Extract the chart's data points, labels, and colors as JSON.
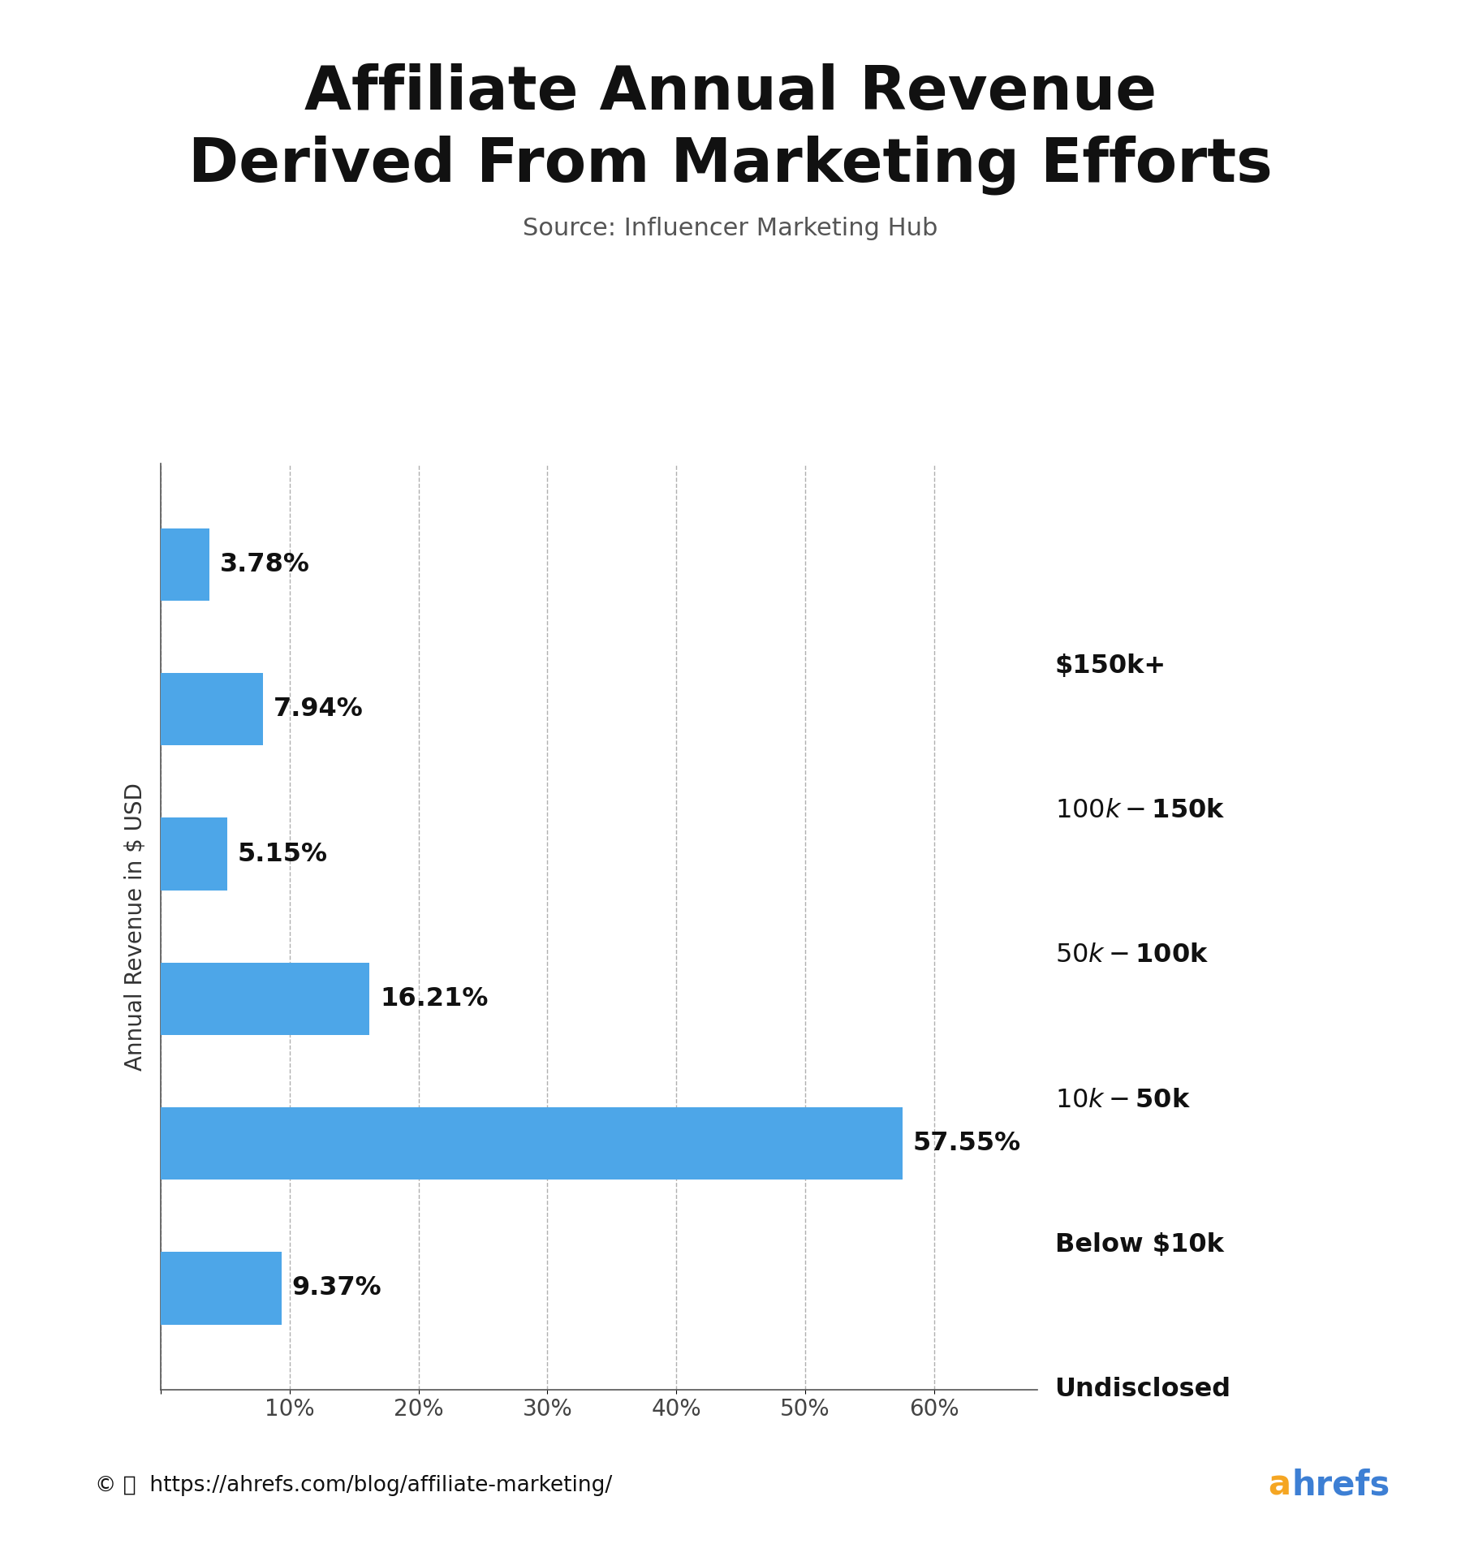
{
  "title_line1": "Affiliate Annual Revenue",
  "title_line2": "Derived From Marketing Efforts",
  "subtitle": "Source: Influencer Marketing Hub",
  "ylabel": "Annual Revenue in $ USD",
  "categories_top_to_bottom": [
    "$150k+",
    "$100k-$150k",
    "$50k-$100k",
    "$10k-$50k",
    "Below $10k",
    "Undisclosed"
  ],
  "values_top_to_bottom": [
    3.78,
    7.94,
    5.15,
    16.21,
    57.55,
    9.37
  ],
  "labels_top_to_bottom": [
    "3.78%",
    "7.94%",
    "5.15%",
    "16.21%",
    "57.55%",
    "9.37%"
  ],
  "bar_color": "#4DA6E8",
  "background_color": "#ffffff",
  "grid_color": "#b0b0b0",
  "xlim": [
    0,
    68
  ],
  "xticks": [
    0,
    10,
    20,
    30,
    40,
    50,
    60
  ],
  "xtick_labels": [
    "",
    "10%",
    "20%",
    "30%",
    "40%",
    "50%",
    "60%"
  ],
  "footer_url": "https://ahrefs.com/blog/affiliate-marketing/",
  "footer_brand_color_a": "#F5A623",
  "footer_brand_color_hrefs": "#3D7FD4",
  "title_fontsize": 54,
  "subtitle_fontsize": 22,
  "label_fontsize": 23,
  "category_fontsize": 23,
  "ylabel_fontsize": 20,
  "xtick_fontsize": 20,
  "footer_fontsize": 19,
  "brand_fontsize": 30
}
